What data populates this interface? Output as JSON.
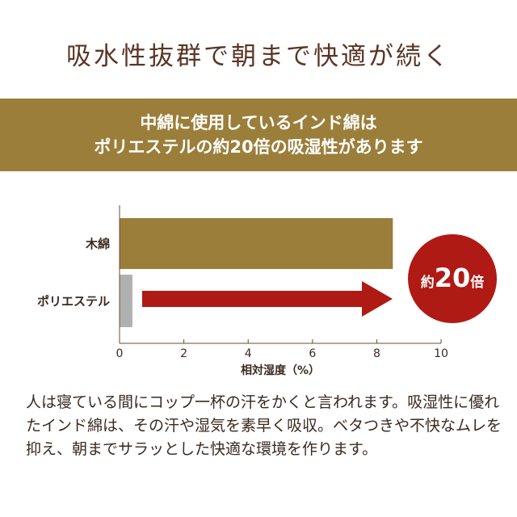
{
  "title": "吸水性抜群で朝まで快適が続く",
  "banner": {
    "line1": "中綿に使用しているインド綿は",
    "line2": "ポリエステルの約20倍の吸湿性があります"
  },
  "badge": {
    "prefix": "約",
    "number": "20",
    "suffix": "倍"
  },
  "chart_data": {
    "type": "bar",
    "orientation": "horizontal",
    "categories": [
      "木綿",
      "ポリエステル"
    ],
    "values": [
      8.5,
      0.4
    ],
    "colors": [
      "#9b7e3a",
      "#b0b0b0"
    ],
    "xlabel": "相対湿度（%）",
    "xlim": [
      0,
      10
    ],
    "xticks": [
      "0",
      "2",
      "4",
      "6",
      "8",
      "10"
    ],
    "grid": false,
    "arrow_color": "#b01a14"
  },
  "body": "人は寝ている間にコップ一杯の汗をかくと言われます。吸湿性に優れたインド綿は、その汗や湿気を素早く吸収。ベタつきや不快なムレを抑え、朝までサラッとした快適な環境を作ります。"
}
